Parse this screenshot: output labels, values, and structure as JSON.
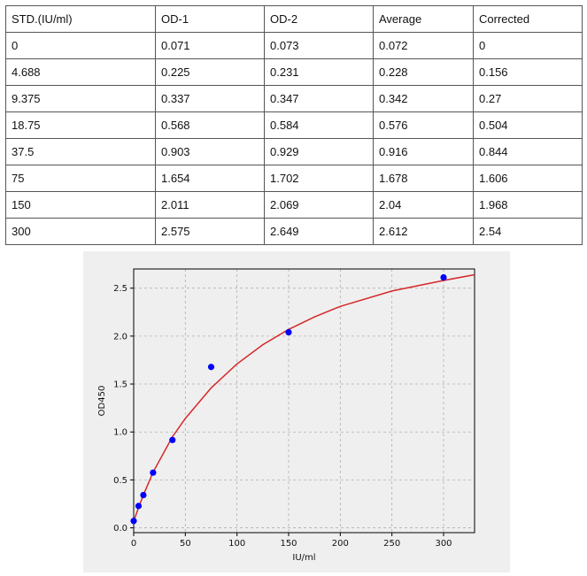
{
  "table": {
    "headers": [
      "STD.(IU/ml)",
      "OD-1",
      "OD-2",
      "Average",
      "Corrected"
    ],
    "rows": [
      [
        "0",
        "0.071",
        "0.073",
        "0.072",
        "0"
      ],
      [
        "4.688",
        "0.225",
        "0.231",
        "0.228",
        "0.156"
      ],
      [
        "9.375",
        "0.337",
        "0.347",
        "0.342",
        "0.27"
      ],
      [
        "18.75",
        "0.568",
        "0.584",
        "0.576",
        "0.504"
      ],
      [
        "37.5",
        "0.903",
        "0.929",
        "0.916",
        "0.844"
      ],
      [
        "75",
        "1.654",
        "1.702",
        "1.678",
        "1.606"
      ],
      [
        "150",
        "2.011",
        "2.069",
        "2.04",
        "1.968"
      ],
      [
        "300",
        "2.575",
        "2.649",
        "2.612",
        "2.54"
      ]
    ]
  },
  "chart_data": {
    "type": "scatter",
    "title": "",
    "xlabel": "IU/ml",
    "ylabel": "OD450",
    "xlim": [
      0,
      330
    ],
    "ylim": [
      -0.05,
      2.7
    ],
    "x_ticks": [
      0,
      50,
      100,
      150,
      200,
      250,
      300
    ],
    "y_ticks": [
      0.0,
      0.5,
      1.0,
      1.5,
      2.0,
      2.5
    ],
    "y_tick_labels": [
      "0.0",
      "0.5",
      "1.0",
      "1.5",
      "2.0",
      "2.5"
    ],
    "grid": true,
    "points": {
      "x": [
        0,
        4.688,
        9.375,
        18.75,
        37.5,
        75,
        150,
        300
      ],
      "y": [
        0.072,
        0.228,
        0.342,
        0.576,
        0.916,
        1.678,
        2.04,
        2.612
      ],
      "color": "#0000ff"
    },
    "fit_curve": {
      "x": [
        0,
        4.688,
        9.375,
        18.75,
        37.5,
        50,
        75,
        100,
        125,
        150,
        175,
        200,
        250,
        300,
        330
      ],
      "y": [
        0.07,
        0.21,
        0.34,
        0.58,
        0.95,
        1.14,
        1.46,
        1.71,
        1.91,
        2.07,
        2.2,
        2.31,
        2.47,
        2.58,
        2.64
      ],
      "color": "#d62728"
    }
  }
}
